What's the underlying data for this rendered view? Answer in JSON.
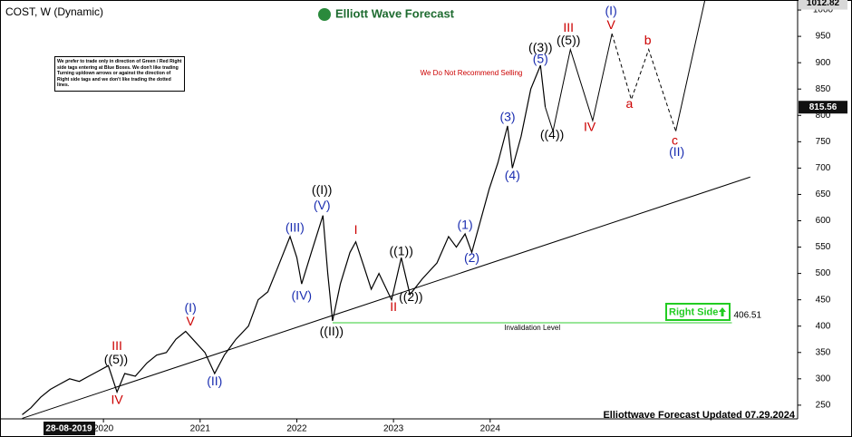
{
  "chart_data": {
    "type": "line",
    "title": "COST, W (Dynamic)",
    "brand": "Elliott Wave Forecast",
    "note": "We prefer to trade only in direction of Green / Red Right side tags entering at Blue Boxes. We don't like trading Turning up/down arrows or against the direction of Right side tags and we don't like trading the dotted lines.",
    "warning": "We Do Not Recommend Selling",
    "footer": "Elliottwave Forecast Updated 07.29.2024",
    "cursor_date": "28-08-2019",
    "xlim": [
      2018.93,
      2027.18
    ],
    "ylim": [
      224,
      1019
    ],
    "xticks": [
      2020,
      2021,
      2022,
      2023,
      2024
    ],
    "yticks": [
      250,
      300,
      350,
      400,
      450,
      500,
      550,
      600,
      650,
      700,
      750,
      800,
      850,
      900,
      950,
      1000
    ],
    "price_tags": [
      1012.82,
      815.56
    ],
    "series": [
      {
        "color": "#000000",
        "dashed": false,
        "x": [
          2019.16,
          2019.25,
          2019.35,
          2019.45,
          2019.55,
          2019.65,
          2019.75,
          2019.85,
          2019.95,
          2020.05,
          2020.14,
          2020.22,
          2020.33,
          2020.45,
          2020.55,
          2020.65,
          2020.75,
          2020.85,
          2020.95,
          2021.05,
          2021.15,
          2021.25,
          2021.37,
          2021.5,
          2021.6,
          2021.7,
          2021.8,
          2021.93,
          2022.0,
          2022.05,
          2022.15,
          2022.27,
          2022.32,
          2022.37,
          2022.45,
          2022.55,
          2022.61,
          2022.7,
          2022.77,
          2022.85,
          2022.98,
          2023.08,
          2023.17,
          2023.3,
          2023.45,
          2023.57,
          2023.65,
          2023.74,
          2023.81,
          2023.9,
          2023.99,
          2024.08,
          2024.18,
          2024.23,
          2024.32,
          2024.42,
          2024.52,
          2024.57
        ],
        "values": [
          232,
          245,
          265,
          280,
          290,
          300,
          295,
          305,
          315,
          325,
          275,
          310,
          305,
          330,
          345,
          350,
          375,
          390,
          370,
          350,
          310,
          345,
          375,
          400,
          450,
          465,
          510,
          570,
          530,
          480,
          540,
          610,
          500,
          410,
          480,
          540,
          560,
          510,
          470,
          500,
          450,
          530,
          460,
          490,
          520,
          570,
          550,
          575,
          540,
          600,
          660,
          710,
          780,
          700,
          760,
          850,
          895,
          815.56
        ]
      },
      {
        "color": "#000000",
        "dashed": false,
        "x": [
          2024.57,
          2024.65,
          2024.83,
          2025.06,
          2025.26
        ],
        "values": [
          815.56,
          770,
          925,
          790,
          955
        ]
      },
      {
        "color": "#000000",
        "dashed": true,
        "x": [
          2025.26,
          2025.46,
          2025.64,
          2025.92
        ],
        "values": [
          955,
          830,
          925,
          770
        ]
      },
      {
        "color": "#000000",
        "dashed": false,
        "x": [
          2025.92,
          2026.22
        ],
        "values": [
          770,
          1018
        ]
      }
    ],
    "trendline": {
      "color": "#000000",
      "x": [
        2019.16,
        2026.69
      ],
      "values": [
        225,
        683
      ]
    },
    "invalidation": {
      "label": "Invalidation Level",
      "value": 406.51,
      "x": [
        2022.37,
        2026.5
      ],
      "color": "#33cc33"
    },
    "right_side": "Right Side",
    "annotations": [
      {
        "text": "III",
        "x": 2020.14,
        "y": 361,
        "color": "#cc0000"
      },
      {
        "text": "((5))",
        "x": 2020.13,
        "y": 335,
        "color": "#000000"
      },
      {
        "text": "IV",
        "x": 2020.14,
        "y": 259,
        "color": "#cc0000"
      },
      {
        "text": "V",
        "x": 2020.9,
        "y": 408,
        "color": "#cc0000"
      },
      {
        "text": "(I)",
        "x": 2020.9,
        "y": 433,
        "color": "#1a2db0"
      },
      {
        "text": "(II)",
        "x": 2021.15,
        "y": 294,
        "color": "#1a2db0"
      },
      {
        "text": "(III)",
        "x": 2021.98,
        "y": 586,
        "color": "#1a2db0"
      },
      {
        "text": "(IV)",
        "x": 2022.05,
        "y": 457,
        "color": "#1a2db0"
      },
      {
        "text": "((I))",
        "x": 2022.26,
        "y": 657,
        "color": "#000000"
      },
      {
        "text": "(V)",
        "x": 2022.26,
        "y": 628,
        "color": "#1a2db0"
      },
      {
        "text": "((II))",
        "x": 2022.36,
        "y": 389,
        "color": "#000000"
      },
      {
        "text": "I",
        "x": 2022.61,
        "y": 581,
        "color": "#cc0000"
      },
      {
        "text": "II",
        "x": 2023.0,
        "y": 435,
        "color": "#cc0000"
      },
      {
        "text": "((1))",
        "x": 2023.08,
        "y": 541,
        "color": "#000000"
      },
      {
        "text": "((2))",
        "x": 2023.18,
        "y": 454,
        "color": "#000000"
      },
      {
        "text": "(1)",
        "x": 2023.74,
        "y": 591,
        "color": "#1a2db0"
      },
      {
        "text": "(2)",
        "x": 2023.81,
        "y": 528,
        "color": "#1a2db0"
      },
      {
        "text": "(3)",
        "x": 2024.18,
        "y": 796,
        "color": "#1a2db0"
      },
      {
        "text": "(4)",
        "x": 2024.23,
        "y": 685,
        "color": "#1a2db0"
      },
      {
        "text": "((3))",
        "x": 2024.52,
        "y": 927,
        "color": "#000000"
      },
      {
        "text": "(5)",
        "x": 2024.52,
        "y": 906,
        "color": "#1a2db0"
      },
      {
        "text": "((5))",
        "x": 2024.81,
        "y": 941,
        "color": "#000000"
      },
      {
        "text": "((4))",
        "x": 2024.64,
        "y": 762,
        "color": "#000000"
      },
      {
        "text": "III",
        "x": 2024.81,
        "y": 965,
        "color": "#cc0000"
      },
      {
        "text": "(I)",
        "x": 2025.25,
        "y": 997,
        "color": "#1a2db0"
      },
      {
        "text": "V",
        "x": 2025.25,
        "y": 970,
        "color": "#cc0000"
      },
      {
        "text": "IV",
        "x": 2025.03,
        "y": 777,
        "color": "#cc0000"
      },
      {
        "text": "a",
        "x": 2025.44,
        "y": 821,
        "color": "#cc0000"
      },
      {
        "text": "b",
        "x": 2025.63,
        "y": 941,
        "color": "#cc0000"
      },
      {
        "text": "c",
        "x": 2025.91,
        "y": 751,
        "color": "#cc0000"
      },
      {
        "text": "(II)",
        "x": 2025.93,
        "y": 729,
        "color": "#1a2db0"
      }
    ]
  }
}
